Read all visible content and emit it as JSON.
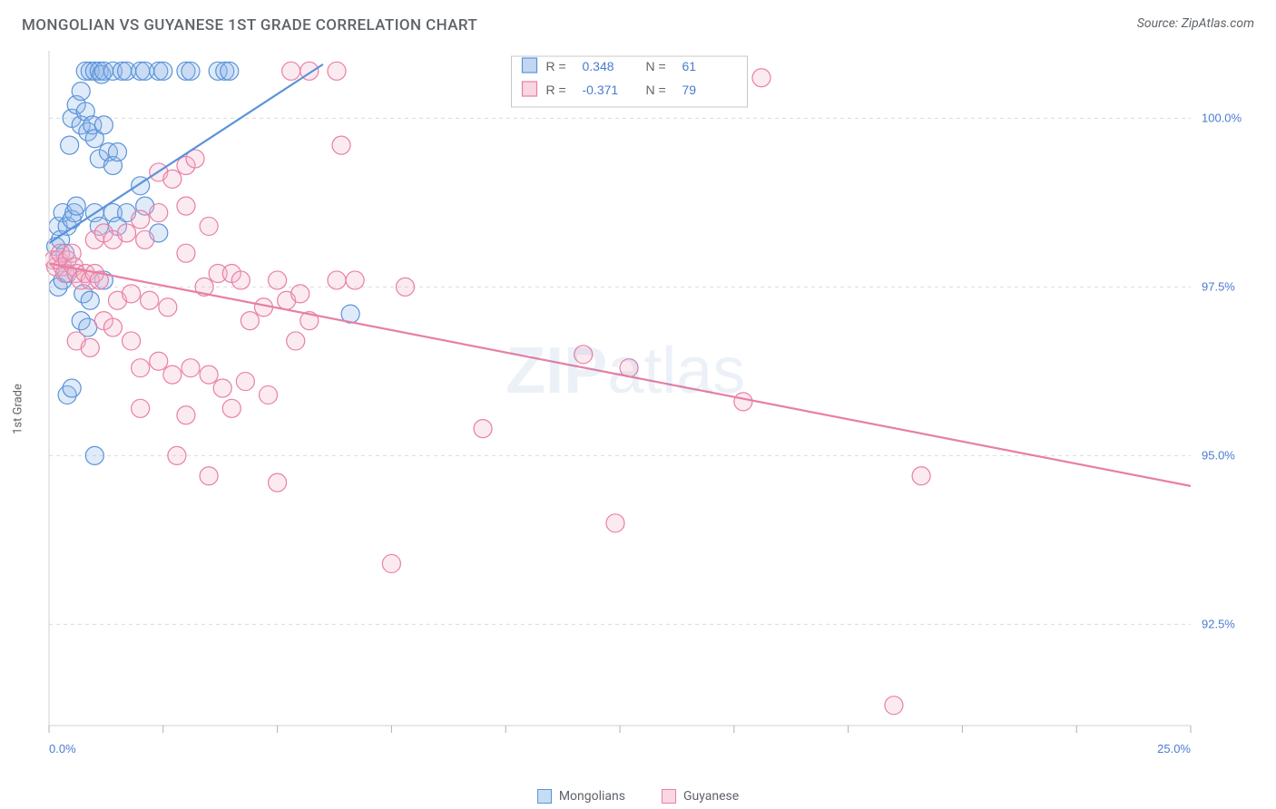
{
  "title": "MONGOLIAN VS GUYANESE 1ST GRADE CORRELATION CHART",
  "source": "Source: ZipAtlas.com",
  "y_axis_label": "1st Grade",
  "watermark_bold": "ZIP",
  "watermark_light": "atlas",
  "chart": {
    "type": "scatter",
    "background_color": "#ffffff",
    "plot_border_color": "#d0d0d0",
    "grid_color": "#dcdcdc",
    "grid_dash": "4,4",
    "axis_tick_color": "#b0b0b0",
    "xlim": [
      0.0,
      25.0
    ],
    "ylim": [
      91.0,
      101.0
    ],
    "x_ticks_labeled": [
      {
        "v": 0.0,
        "label": "0.0%"
      },
      {
        "v": 25.0,
        "label": "25.0%"
      }
    ],
    "x_ticks_minor": [
      2.5,
      5.0,
      7.5,
      10.0,
      12.5,
      15.0,
      17.5,
      20.0,
      22.5
    ],
    "y_ticks": [
      {
        "v": 92.5,
        "label": "92.5%"
      },
      {
        "v": 95.0,
        "label": "95.0%"
      },
      {
        "v": 97.5,
        "label": "97.5%"
      },
      {
        "v": 100.0,
        "label": "100.0%"
      }
    ],
    "x_tick_label_color": "#4a7bd0",
    "y_tick_label_color": "#4a7bd0",
    "marker_radius": 10,
    "marker_stroke_width": 1.2,
    "marker_fill_opacity": 0.28,
    "trendline_width": 2.2,
    "series": [
      {
        "name": "Mongolians",
        "color_stroke": "#5a93d8",
        "color_fill": "#8fb8e8",
        "R": "0.348",
        "N": "61",
        "trendline": {
          "x1": 0.0,
          "y1": 98.15,
          "x2": 6.0,
          "y2": 100.8
        },
        "points": [
          {
            "x": 0.15,
            "y": 98.1
          },
          {
            "x": 0.2,
            "y": 98.4
          },
          {
            "x": 0.25,
            "y": 98.2
          },
          {
            "x": 0.3,
            "y": 98.6
          },
          {
            "x": 0.2,
            "y": 97.5
          },
          {
            "x": 0.3,
            "y": 97.6
          },
          {
            "x": 0.4,
            "y": 97.7
          },
          {
            "x": 0.35,
            "y": 98.0
          },
          {
            "x": 0.4,
            "y": 98.4
          },
          {
            "x": 0.5,
            "y": 98.5
          },
          {
            "x": 0.55,
            "y": 98.6
          },
          {
            "x": 0.6,
            "y": 98.7
          },
          {
            "x": 0.45,
            "y": 99.6
          },
          {
            "x": 0.5,
            "y": 100.0
          },
          {
            "x": 0.6,
            "y": 100.2
          },
          {
            "x": 0.7,
            "y": 100.4
          },
          {
            "x": 0.8,
            "y": 100.7
          },
          {
            "x": 0.9,
            "y": 100.7
          },
          {
            "x": 1.0,
            "y": 100.7
          },
          {
            "x": 1.1,
            "y": 100.7
          },
          {
            "x": 1.15,
            "y": 100.65
          },
          {
            "x": 1.2,
            "y": 100.7
          },
          {
            "x": 1.4,
            "y": 100.7
          },
          {
            "x": 1.6,
            "y": 100.7
          },
          {
            "x": 1.7,
            "y": 100.7
          },
          {
            "x": 2.0,
            "y": 100.7
          },
          {
            "x": 2.1,
            "y": 100.7
          },
          {
            "x": 2.4,
            "y": 100.7
          },
          {
            "x": 2.5,
            "y": 100.7
          },
          {
            "x": 3.0,
            "y": 100.7
          },
          {
            "x": 3.1,
            "y": 100.7
          },
          {
            "x": 3.7,
            "y": 100.7
          },
          {
            "x": 3.85,
            "y": 100.7
          },
          {
            "x": 3.95,
            "y": 100.7
          },
          {
            "x": 0.7,
            "y": 99.9
          },
          {
            "x": 0.8,
            "y": 100.1
          },
          {
            "x": 0.85,
            "y": 99.8
          },
          {
            "x": 0.95,
            "y": 99.9
          },
          {
            "x": 1.0,
            "y": 99.7
          },
          {
            "x": 1.2,
            "y": 99.9
          },
          {
            "x": 1.1,
            "y": 99.4
          },
          {
            "x": 1.3,
            "y": 99.5
          },
          {
            "x": 1.4,
            "y": 99.3
          },
          {
            "x": 1.5,
            "y": 99.5
          },
          {
            "x": 1.0,
            "y": 98.6
          },
          {
            "x": 1.1,
            "y": 98.4
          },
          {
            "x": 1.4,
            "y": 98.6
          },
          {
            "x": 1.5,
            "y": 98.4
          },
          {
            "x": 1.7,
            "y": 98.6
          },
          {
            "x": 0.7,
            "y": 97.0
          },
          {
            "x": 0.75,
            "y": 97.4
          },
          {
            "x": 0.85,
            "y": 96.9
          },
          {
            "x": 0.9,
            "y": 97.3
          },
          {
            "x": 1.2,
            "y": 97.6
          },
          {
            "x": 0.4,
            "y": 95.9
          },
          {
            "x": 0.5,
            "y": 96.0
          },
          {
            "x": 1.0,
            "y": 95.0
          },
          {
            "x": 6.6,
            "y": 97.1
          },
          {
            "x": 2.1,
            "y": 98.7
          },
          {
            "x": 2.4,
            "y": 98.3
          },
          {
            "x": 2.0,
            "y": 99.0
          }
        ]
      },
      {
        "name": "Guyanese",
        "color_stroke": "#e87fa4",
        "color_fill": "#f4b5cb",
        "R": "-0.371",
        "N": "79",
        "trendline": {
          "x1": 0.0,
          "y1": 97.85,
          "x2": 25.0,
          "y2": 94.55
        },
        "points": [
          {
            "x": 0.1,
            "y": 97.9
          },
          {
            "x": 0.15,
            "y": 97.8
          },
          {
            "x": 0.2,
            "y": 97.9
          },
          {
            "x": 0.25,
            "y": 98.0
          },
          {
            "x": 0.3,
            "y": 97.8
          },
          {
            "x": 0.35,
            "y": 97.7
          },
          {
            "x": 0.4,
            "y": 97.9
          },
          {
            "x": 0.5,
            "y": 98.0
          },
          {
            "x": 0.55,
            "y": 97.8
          },
          {
            "x": 0.6,
            "y": 97.7
          },
          {
            "x": 0.7,
            "y": 97.6
          },
          {
            "x": 0.8,
            "y": 97.7
          },
          {
            "x": 0.9,
            "y": 97.6
          },
          {
            "x": 1.0,
            "y": 97.7
          },
          {
            "x": 1.1,
            "y": 97.6
          },
          {
            "x": 1.0,
            "y": 98.2
          },
          {
            "x": 1.2,
            "y": 98.3
          },
          {
            "x": 1.4,
            "y": 98.2
          },
          {
            "x": 1.7,
            "y": 98.3
          },
          {
            "x": 2.0,
            "y": 98.5
          },
          {
            "x": 2.4,
            "y": 98.6
          },
          {
            "x": 2.1,
            "y": 98.2
          },
          {
            "x": 2.4,
            "y": 99.2
          },
          {
            "x": 2.7,
            "y": 99.1
          },
          {
            "x": 3.0,
            "y": 99.3
          },
          {
            "x": 3.2,
            "y": 99.4
          },
          {
            "x": 3.0,
            "y": 98.7
          },
          {
            "x": 3.5,
            "y": 98.4
          },
          {
            "x": 5.3,
            "y": 100.7
          },
          {
            "x": 5.7,
            "y": 100.7
          },
          {
            "x": 6.3,
            "y": 100.7
          },
          {
            "x": 6.4,
            "y": 99.6
          },
          {
            "x": 5.0,
            "y": 97.6
          },
          {
            "x": 5.2,
            "y": 97.3
          },
          {
            "x": 5.5,
            "y": 97.4
          },
          {
            "x": 6.3,
            "y": 97.6
          },
          {
            "x": 6.7,
            "y": 97.6
          },
          {
            "x": 3.7,
            "y": 97.7
          },
          {
            "x": 4.0,
            "y": 97.7
          },
          {
            "x": 4.2,
            "y": 97.6
          },
          {
            "x": 4.4,
            "y": 97.0
          },
          {
            "x": 4.7,
            "y": 97.2
          },
          {
            "x": 3.4,
            "y": 97.5
          },
          {
            "x": 3.0,
            "y": 98.0
          },
          {
            "x": 0.6,
            "y": 96.7
          },
          {
            "x": 0.9,
            "y": 96.6
          },
          {
            "x": 1.2,
            "y": 97.0
          },
          {
            "x": 1.4,
            "y": 96.9
          },
          {
            "x": 1.8,
            "y": 96.7
          },
          {
            "x": 2.0,
            "y": 96.3
          },
          {
            "x": 2.4,
            "y": 96.4
          },
          {
            "x": 2.7,
            "y": 96.2
          },
          {
            "x": 3.1,
            "y": 96.3
          },
          {
            "x": 3.5,
            "y": 96.2
          },
          {
            "x": 3.8,
            "y": 96.0
          },
          {
            "x": 4.3,
            "y": 96.1
          },
          {
            "x": 4.8,
            "y": 95.9
          },
          {
            "x": 5.4,
            "y": 96.7
          },
          {
            "x": 5.7,
            "y": 97.0
          },
          {
            "x": 2.0,
            "y": 95.7
          },
          {
            "x": 3.0,
            "y": 95.6
          },
          {
            "x": 4.0,
            "y": 95.7
          },
          {
            "x": 2.8,
            "y": 95.0
          },
          {
            "x": 3.5,
            "y": 94.7
          },
          {
            "x": 5.0,
            "y": 94.6
          },
          {
            "x": 7.8,
            "y": 97.5
          },
          {
            "x": 9.5,
            "y": 95.4
          },
          {
            "x": 7.5,
            "y": 93.4
          },
          {
            "x": 11.7,
            "y": 96.5
          },
          {
            "x": 12.7,
            "y": 96.3
          },
          {
            "x": 12.4,
            "y": 94.0
          },
          {
            "x": 15.2,
            "y": 95.8
          },
          {
            "x": 15.6,
            "y": 100.6
          },
          {
            "x": 18.5,
            "y": 91.3
          },
          {
            "x": 19.1,
            "y": 94.7
          },
          {
            "x": 1.5,
            "y": 97.3
          },
          {
            "x": 1.8,
            "y": 97.4
          },
          {
            "x": 2.2,
            "y": 97.3
          },
          {
            "x": 2.6,
            "y": 97.2
          }
        ]
      }
    ]
  },
  "legend_box": {
    "border_color": "#c8c8c8",
    "background": "#ffffff",
    "r_label": "R =",
    "n_label": "N =",
    "value_color": "#4a7bd0",
    "label_color": "#5f6368"
  },
  "bottom_legend": [
    {
      "swatch_fill": "#c5dcf5",
      "swatch_stroke": "#5a93d8",
      "label": "Mongolians"
    },
    {
      "swatch_fill": "#fad7e4",
      "swatch_stroke": "#e87fa4",
      "label": "Guyanese"
    }
  ]
}
